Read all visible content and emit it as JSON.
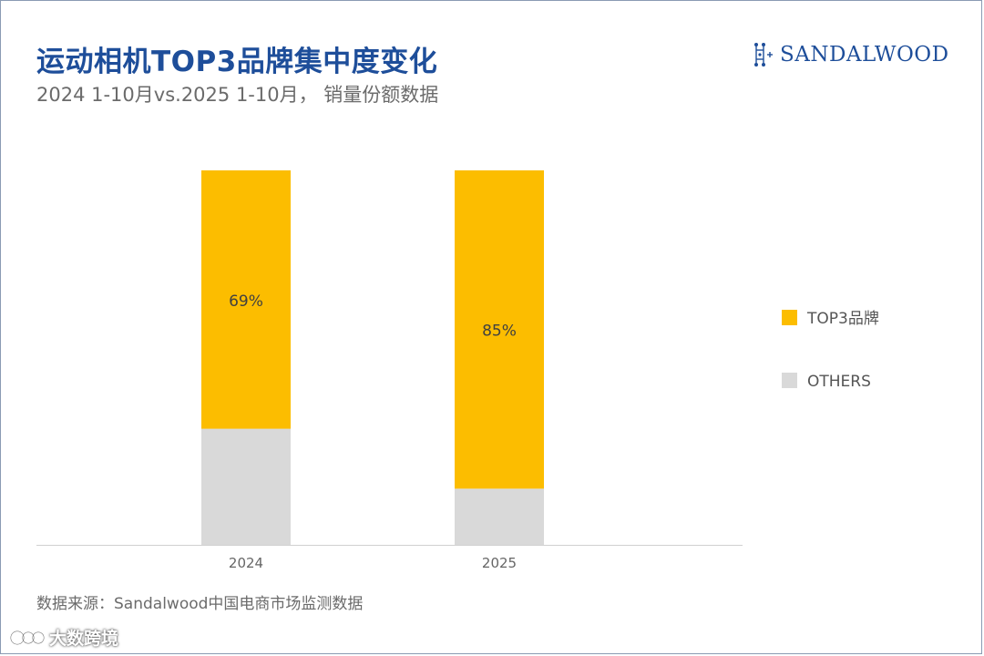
{
  "title": "运动相机TOP3品牌集中度变化",
  "subtitle": "2024 1-10月vs.2025 1-10月， 销量份额数据",
  "brand": {
    "name": "SANDALWOOD"
  },
  "source": "数据来源：Sandalwood中国电商市场监测数据",
  "watermark": "大数跨境",
  "chart_data": {
    "type": "bar",
    "stacked": true,
    "categories": [
      "2024",
      "2025"
    ],
    "series": [
      {
        "name": "TOP3品牌",
        "values": [
          69,
          85
        ],
        "labels": [
          "69%",
          "85%"
        ],
        "color": "#fcbd00"
      },
      {
        "name": "OTHERS",
        "values": [
          31,
          15
        ],
        "color": "#d9d9d9"
      }
    ],
    "ylim": [
      0,
      100
    ],
    "grid": false,
    "legend": "right"
  }
}
